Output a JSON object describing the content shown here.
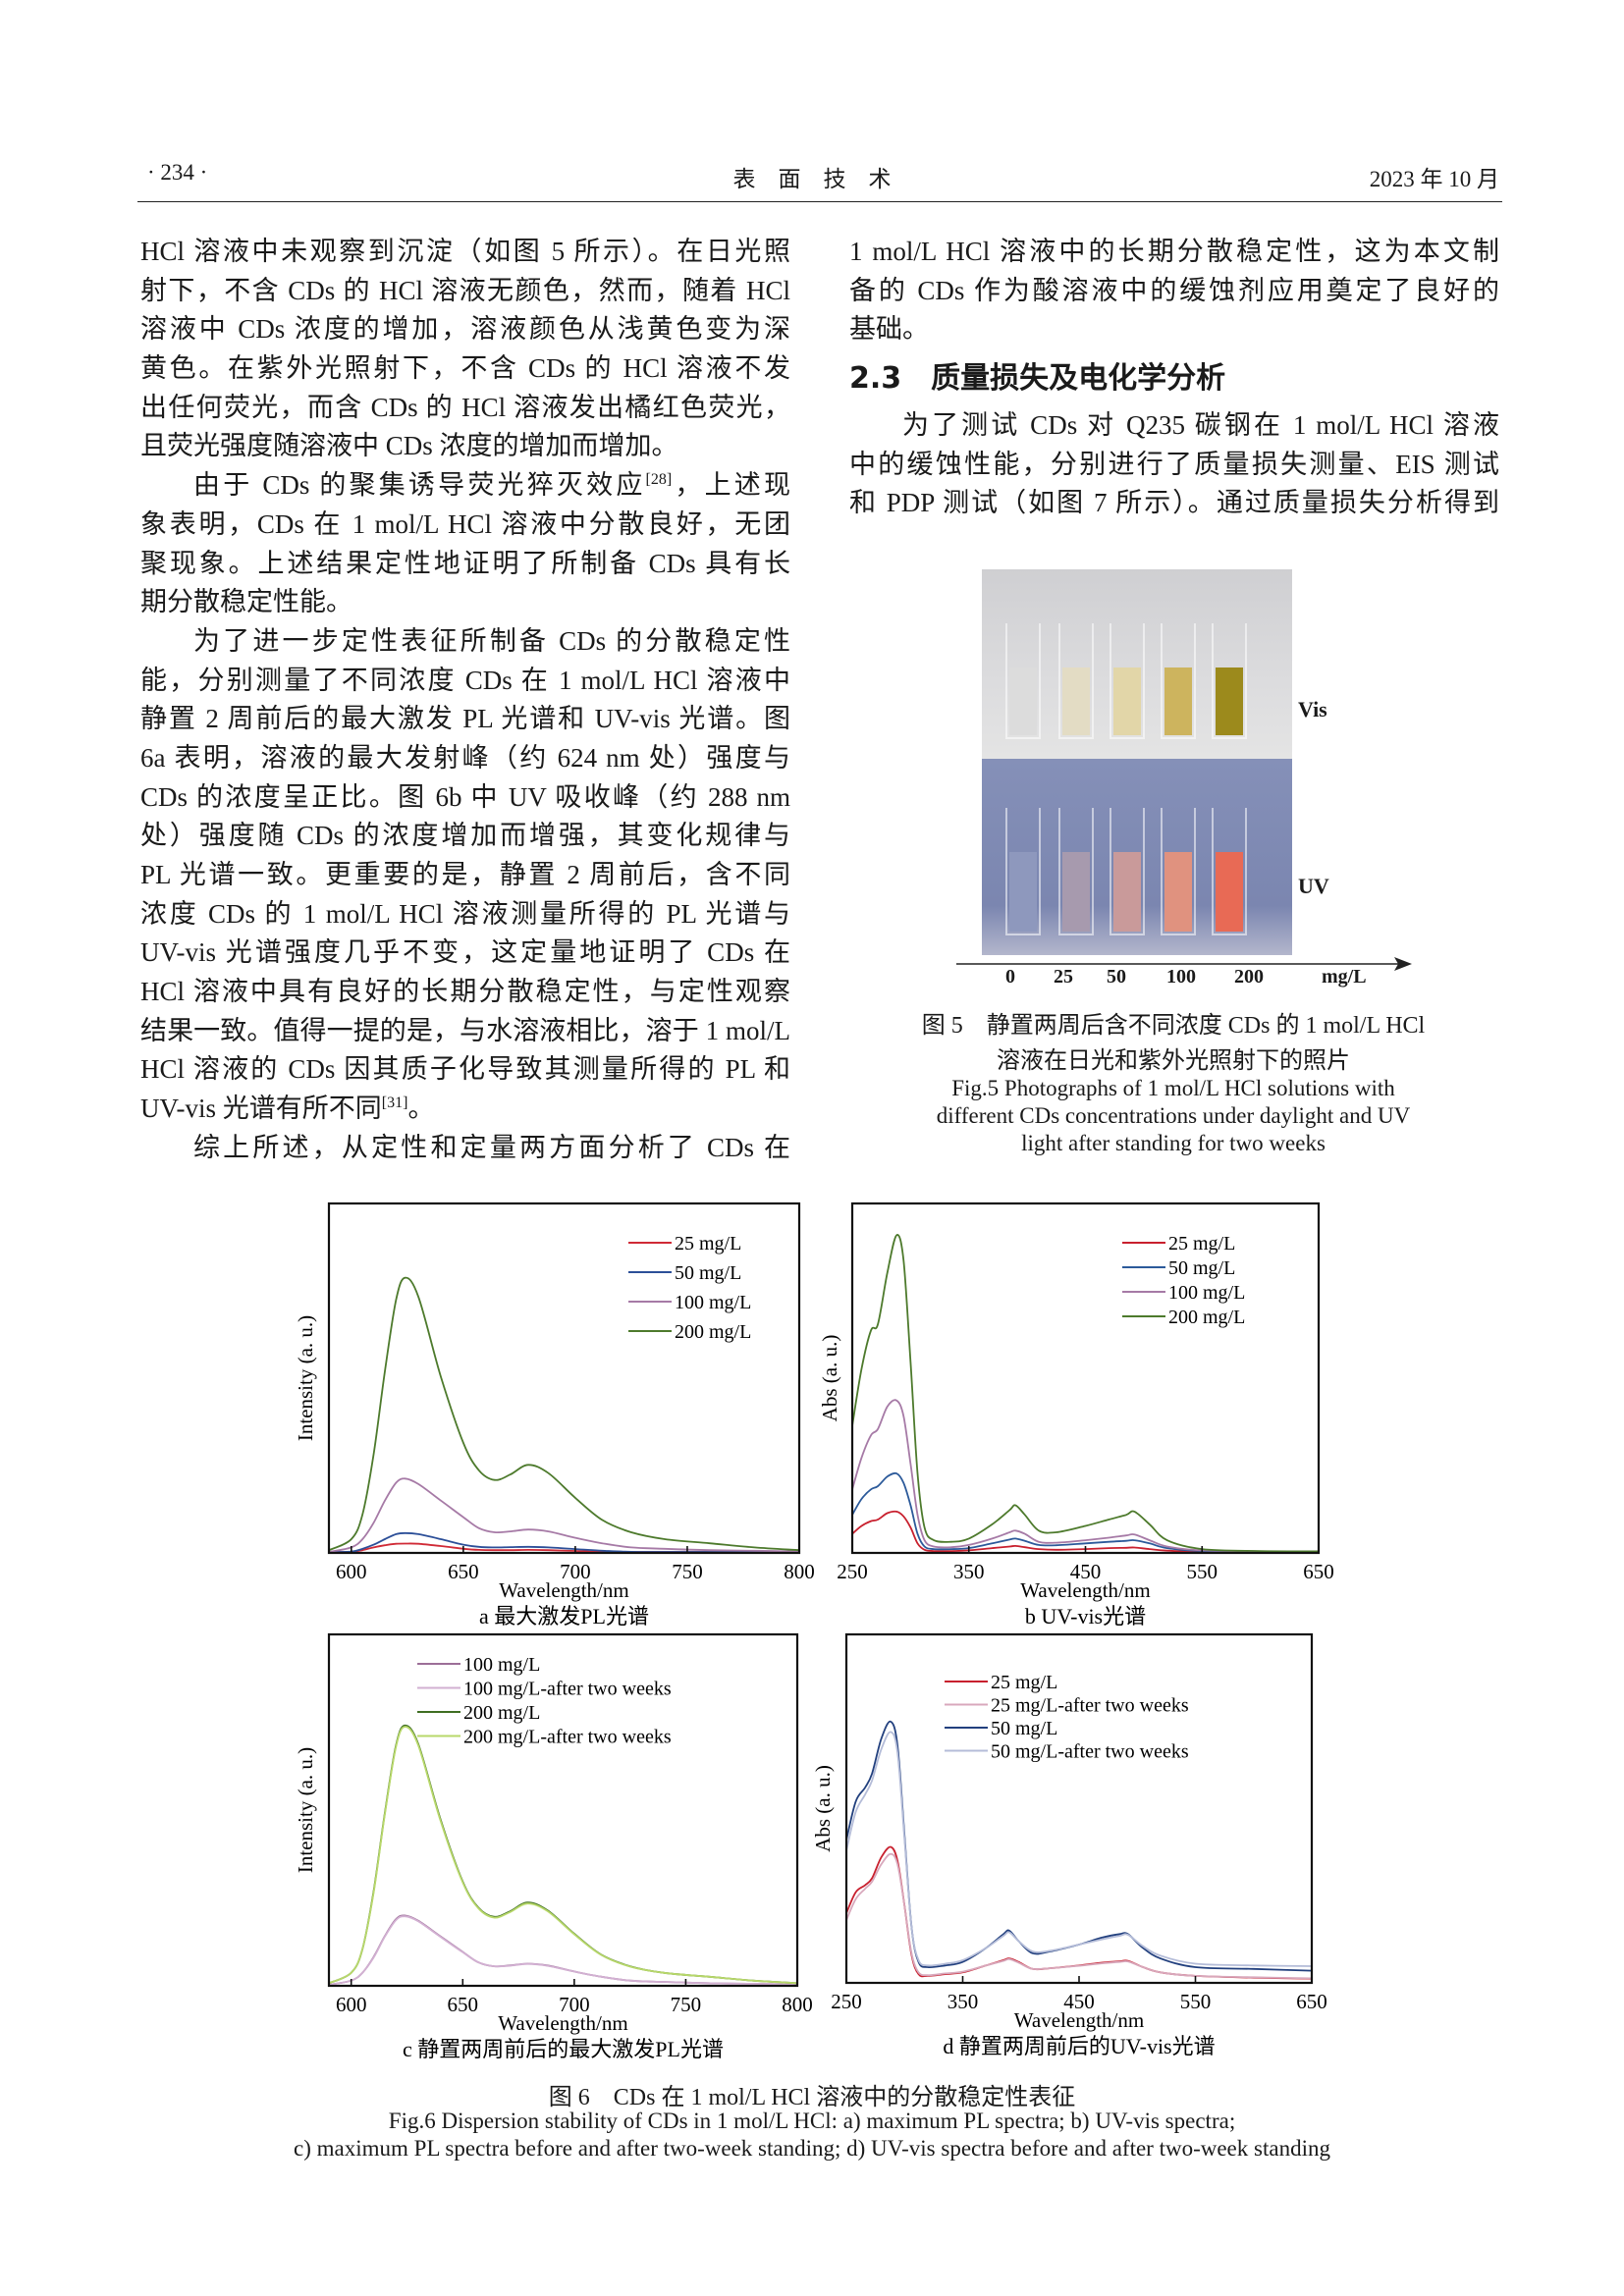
{
  "header": {
    "page_number": "· 234 ·",
    "journal": "表　面　技　术",
    "date": "2023 年 10 月"
  },
  "left_column": {
    "paragraphs": [
      {
        "indent": false,
        "lines": [
          "HCl 溶液中未观察到沉淀（如图 5 所示）。在日光照",
          "射下，不含 CDs 的 HCl 溶液无颜色，然而，随着 HCl",
          "溶液中 CDs 浓度的增加，溶液颜色从浅黄色变为深",
          "黄色。在紫外光照射下，不含 CDs 的 HCl 溶液不发",
          "出任何荧光，而含 CDs 的 HCl 溶液发出橘红色荧光，",
          "且荧光强度随溶液中 CDs 浓度的增加而增加。"
        ]
      },
      {
        "indent": true,
        "lines": [
          {
            "pre": "由于 CDs 的聚集诱导荧光猝灭效应",
            "sup": "[28]",
            "post": "，上述现"
          },
          "象表明，CDs 在 1 mol/L HCl 溶液中分散良好，无团",
          "聚现象。上述结果定性地证明了所制备 CDs 具有长",
          "期分散稳定性能。"
        ]
      },
      {
        "indent": true,
        "lines": [
          "为了进一步定性表征所制备 CDs 的分散稳定性",
          "能，分别测量了不同浓度 CDs 在 1 mol/L HCl 溶液中",
          "静置 2 周前后的最大激发 PL 光谱和 UV-vis 光谱。图",
          "6a 表明，溶液的最大发射峰（约 624 nm 处）强度与",
          "CDs 的浓度呈正比。图 6b 中 UV 吸收峰（约 288 nm",
          "处）强度随 CDs 的浓度增加而增强，其变化规律与",
          "PL 光谱一致。更重要的是，静置 2 周前后，含不同",
          "浓度 CDs 的 1 mol/L HCl 溶液测量所得的 PL 光谱与",
          "UV-vis 光谱强度几乎不变，这定量地证明了 CDs 在",
          "HCl 溶液中具有良好的长期分散稳定性，与定性观察",
          "结果一致。值得一提的是，与水溶液相比，溶于 1 mol/L",
          "HCl 溶液的 CDs 因其质子化导致其测量所得的 PL 和",
          {
            "pre": "UV-vis 光谱有所不同",
            "sup": "[31]",
            "post": "。"
          }
        ]
      },
      {
        "indent": true,
        "continues": true,
        "lines": [
          "综上所述，从定性和定量两方面分析了 CDs 在"
        ]
      }
    ]
  },
  "right_column": {
    "paragraphs_before": [
      {
        "indent": false,
        "lines": [
          "1 mol/L HCl 溶液中的长期分散稳定性，这为本文制",
          "备的 CDs 作为酸溶液中的缓蚀剂应用奠定了良好的",
          "基础。"
        ]
      }
    ],
    "section_heading": "2.3　质量损失及电化学分析",
    "paragraphs_after": [
      {
        "indent": true,
        "continues": true,
        "lines": [
          "为了测试 CDs 对 Q235 碳钢在 1 mol/L HCl 溶液",
          "中的缓蚀性能，分别进行了质量损失测量、EIS 测试",
          "和 PDP 测试（如图 7 所示）。通过质量损失分析得到"
        ]
      }
    ]
  },
  "figure5": {
    "vis_label": "Vis",
    "uv_label": "UV",
    "concentrations": [
      "0",
      "25",
      "50",
      "100",
      "200"
    ],
    "unit": "mg/L",
    "vis_colors": [
      "#dcdcdc",
      "#e3dcc4",
      "#e2d6a8",
      "#cdb45e",
      "#9c8a1c"
    ],
    "uv_colors": [
      "#8e98bd",
      "#a79aae",
      "#c99a9a",
      "#e0927f",
      "#e86a55"
    ],
    "caption_cn_1": "图 5　静置两周后含不同浓度 CDs 的 1 mol/L HCl",
    "caption_cn_2": "溶液在日光和紫外光照射下的照片",
    "caption_en_1": "Fig.5 Photographs of 1 mol/L HCl solutions with",
    "caption_en_2": "different CDs concentrations under daylight and UV",
    "caption_en_3": "light after standing for two weeks"
  },
  "chart_data": [
    {
      "type": "line",
      "panel": "a",
      "caption": "a  最大激发PL光谱",
      "xlabel": "Wavelength/nm",
      "ylabel": "Intensity (a. u.)",
      "xlim": [
        590,
        800
      ],
      "xticks": [
        600,
        650,
        700,
        750,
        800
      ],
      "ylim": [
        0,
        1.27
      ],
      "yticks": [],
      "grid": false,
      "legend": "top-right",
      "x": [
        590,
        600,
        605,
        610,
        615,
        620,
        624,
        630,
        640,
        650,
        657,
        664,
        671,
        679,
        688,
        700,
        712,
        725,
        740,
        760,
        780,
        800
      ],
      "series": [
        {
          "name": "25 mg/L",
          "color": "#d02a36",
          "values": [
            0,
            0.003,
            0.01,
            0.02,
            0.028,
            0.033,
            0.034,
            0.033,
            0.025,
            0.015,
            0.011,
            0.01,
            0.01,
            0.011,
            0.01,
            0.007,
            0.004,
            0.003,
            0.002,
            0.002,
            0.001,
            0.001
          ]
        },
        {
          "name": "50 mg/L",
          "color": "#2c4f98",
          "values": [
            0,
            0.005,
            0.015,
            0.03,
            0.05,
            0.068,
            0.072,
            0.068,
            0.05,
            0.03,
            0.022,
            0.02,
            0.021,
            0.022,
            0.02,
            0.014,
            0.008,
            0.004,
            0.003,
            0.003,
            0.002,
            0.002
          ]
        },
        {
          "name": "100 mg/L",
          "color": "#a67aa6",
          "values": [
            0,
            0.02,
            0.05,
            0.11,
            0.19,
            0.255,
            0.27,
            0.25,
            0.19,
            0.13,
            0.09,
            0.075,
            0.078,
            0.085,
            0.078,
            0.055,
            0.035,
            0.02,
            0.015,
            0.01,
            0.008,
            0.005
          ]
        },
        {
          "name": "200 mg/L",
          "color": "#4d7a2c",
          "values": [
            0.01,
            0.05,
            0.14,
            0.36,
            0.66,
            0.92,
            1.0,
            0.93,
            0.64,
            0.4,
            0.3,
            0.265,
            0.285,
            0.32,
            0.29,
            0.2,
            0.12,
            0.075,
            0.05,
            0.035,
            0.02,
            0.01
          ]
        }
      ]
    },
    {
      "type": "line",
      "panel": "b",
      "caption": "b  UV-vis光谱",
      "xlabel": "Wavelength/nm",
      "ylabel": "Abs (a. u.)",
      "xlim": [
        250,
        650
      ],
      "xticks": [
        250,
        350,
        450,
        550,
        650
      ],
      "ylim": [
        0,
        1.1
      ],
      "yticks": [],
      "grid": false,
      "legend": "top-right",
      "x": [
        250,
        258,
        266,
        272,
        280,
        288,
        294,
        300,
        306,
        312,
        320,
        335,
        350,
        370,
        385,
        390,
        398,
        410,
        425,
        450,
        470,
        485,
        492,
        505,
        520,
        550,
        600,
        650
      ],
      "series": [
        {
          "name": "25 mg/L",
          "color": "#c8202e",
          "values": [
            0.06,
            0.085,
            0.1,
            0.105,
            0.125,
            0.13,
            0.115,
            0.08,
            0.03,
            0.01,
            0.006,
            0.006,
            0.008,
            0.015,
            0.02,
            0.022,
            0.018,
            0.012,
            0.01,
            0.012,
            0.015,
            0.016,
            0.017,
            0.012,
            0.007,
            0.004,
            0.003,
            0.002
          ]
        },
        {
          "name": "50 mg/L",
          "color": "#2c5a9a",
          "values": [
            0.12,
            0.17,
            0.2,
            0.21,
            0.24,
            0.25,
            0.22,
            0.15,
            0.06,
            0.02,
            0.012,
            0.012,
            0.015,
            0.03,
            0.042,
            0.045,
            0.038,
            0.025,
            0.024,
            0.03,
            0.035,
            0.038,
            0.04,
            0.03,
            0.015,
            0.006,
            0.004,
            0.003
          ]
        },
        {
          "name": "100 mg/L",
          "color": "#a67aa6",
          "values": [
            0.2,
            0.3,
            0.37,
            0.39,
            0.46,
            0.48,
            0.43,
            0.28,
            0.12,
            0.04,
            0.02,
            0.018,
            0.025,
            0.045,
            0.065,
            0.07,
            0.06,
            0.035,
            0.032,
            0.04,
            0.048,
            0.055,
            0.058,
            0.04,
            0.02,
            0.008,
            0.005,
            0.004
          ]
        },
        {
          "name": "200 mg/L",
          "color": "#4d7a2c",
          "values": [
            0.4,
            0.58,
            0.7,
            0.72,
            0.88,
            1.0,
            0.92,
            0.6,
            0.25,
            0.08,
            0.04,
            0.035,
            0.045,
            0.09,
            0.135,
            0.15,
            0.12,
            0.07,
            0.065,
            0.085,
            0.105,
            0.12,
            0.13,
            0.09,
            0.04,
            0.012,
            0.006,
            0.005
          ]
        }
      ]
    },
    {
      "type": "line",
      "panel": "c",
      "caption": "c  静置两周前后的最大激发PL光谱",
      "xlabel": "Wavelength/nm",
      "ylabel": "Intensity (a. u.)",
      "xlim": [
        590,
        800
      ],
      "xticks": [
        600,
        650,
        700,
        750,
        800
      ],
      "ylim": [
        0,
        1.35
      ],
      "yticks": [],
      "grid": false,
      "legend": "top-left",
      "x": [
        590,
        600,
        605,
        610,
        615,
        620,
        624,
        630,
        640,
        650,
        657,
        664,
        671,
        679,
        688,
        700,
        712,
        725,
        740,
        760,
        780,
        800
      ],
      "series": [
        {
          "name": "100 mg/L",
          "color": "#9c6e98",
          "values": [
            0,
            0.02,
            0.05,
            0.11,
            0.19,
            0.255,
            0.27,
            0.25,
            0.19,
            0.13,
            0.09,
            0.075,
            0.078,
            0.085,
            0.078,
            0.055,
            0.035,
            0.02,
            0.015,
            0.01,
            0.008,
            0.005
          ]
        },
        {
          "name": "100 mg/L-after two weeks",
          "color": "#d2b0d2",
          "values": [
            0,
            0.02,
            0.05,
            0.108,
            0.188,
            0.252,
            0.267,
            0.248,
            0.188,
            0.129,
            0.09,
            0.075,
            0.077,
            0.084,
            0.077,
            0.055,
            0.035,
            0.02,
            0.015,
            0.01,
            0.008,
            0.005
          ]
        },
        {
          "name": "200 mg/L",
          "color": "#3f6e22",
          "values": [
            0.01,
            0.05,
            0.14,
            0.36,
            0.66,
            0.92,
            1.0,
            0.93,
            0.64,
            0.4,
            0.3,
            0.265,
            0.285,
            0.32,
            0.29,
            0.2,
            0.12,
            0.075,
            0.05,
            0.035,
            0.02,
            0.01
          ]
        },
        {
          "name": "200 mg/L-after two weeks",
          "color": "#b8d86a",
          "values": [
            0.01,
            0.05,
            0.14,
            0.355,
            0.655,
            0.915,
            0.995,
            0.925,
            0.635,
            0.397,
            0.298,
            0.262,
            0.282,
            0.316,
            0.287,
            0.198,
            0.119,
            0.074,
            0.05,
            0.035,
            0.02,
            0.01
          ]
        }
      ]
    },
    {
      "type": "line",
      "panel": "d",
      "caption": "d  静置两周前后的UV-vis光谱",
      "xlabel": "Wavelength/nm",
      "ylabel": "Abs (a. u.)",
      "xlim": [
        250,
        650
      ],
      "xticks": [
        250,
        350,
        450,
        550,
        650
      ],
      "ylim": [
        0,
        1.0
      ],
      "yticks": [],
      "grid": false,
      "legend": "top-center",
      "x": [
        250,
        258,
        266,
        272,
        280,
        288,
        294,
        300,
        306,
        312,
        320,
        335,
        350,
        370,
        385,
        390,
        398,
        410,
        425,
        450,
        470,
        485,
        492,
        505,
        520,
        550,
        600,
        650
      ],
      "series": [
        {
          "name": "25 mg/L",
          "color": "#c8202e",
          "values": [
            0.2,
            0.26,
            0.28,
            0.3,
            0.36,
            0.39,
            0.35,
            0.22,
            0.08,
            0.025,
            0.02,
            0.025,
            0.03,
            0.05,
            0.065,
            0.07,
            0.06,
            0.04,
            0.042,
            0.05,
            0.058,
            0.062,
            0.063,
            0.045,
            0.03,
            0.02,
            0.015,
            0.012
          ]
        },
        {
          "name": "25 mg/L-after two weeks",
          "color": "#d8a8bc",
          "values": [
            0.18,
            0.24,
            0.27,
            0.29,
            0.34,
            0.37,
            0.34,
            0.22,
            0.085,
            0.03,
            0.022,
            0.027,
            0.032,
            0.05,
            0.063,
            0.068,
            0.058,
            0.04,
            0.042,
            0.049,
            0.056,
            0.06,
            0.061,
            0.045,
            0.03,
            0.02,
            0.016,
            0.013
          ]
        },
        {
          "name": "50 mg/L",
          "color": "#22407e",
          "values": [
            0.41,
            0.52,
            0.56,
            0.6,
            0.7,
            0.75,
            0.68,
            0.42,
            0.16,
            0.06,
            0.045,
            0.05,
            0.06,
            0.1,
            0.14,
            0.15,
            0.12,
            0.085,
            0.09,
            0.11,
            0.13,
            0.14,
            0.14,
            0.1,
            0.07,
            0.045,
            0.04,
            0.035
          ]
        },
        {
          "name": "50 mg/L-after two weeks",
          "color": "#b4bcd8",
          "values": [
            0.38,
            0.49,
            0.54,
            0.58,
            0.67,
            0.72,
            0.66,
            0.41,
            0.16,
            0.065,
            0.05,
            0.055,
            0.065,
            0.1,
            0.135,
            0.145,
            0.12,
            0.09,
            0.092,
            0.11,
            0.125,
            0.135,
            0.138,
            0.105,
            0.078,
            0.055,
            0.05,
            0.048
          ]
        }
      ]
    }
  ],
  "figure6": {
    "caption_cn": "图 6　CDs 在 1 mol/L HCl 溶液中的分散稳定性表征",
    "caption_en_1": "Fig.6 Dispersion stability of CDs in 1 mol/L HCl: a) maximum PL spectra; b) UV-vis spectra;",
    "caption_en_2": "c) maximum PL spectra before and after two-week standing; d) UV-vis spectra before and after two-week standing"
  }
}
